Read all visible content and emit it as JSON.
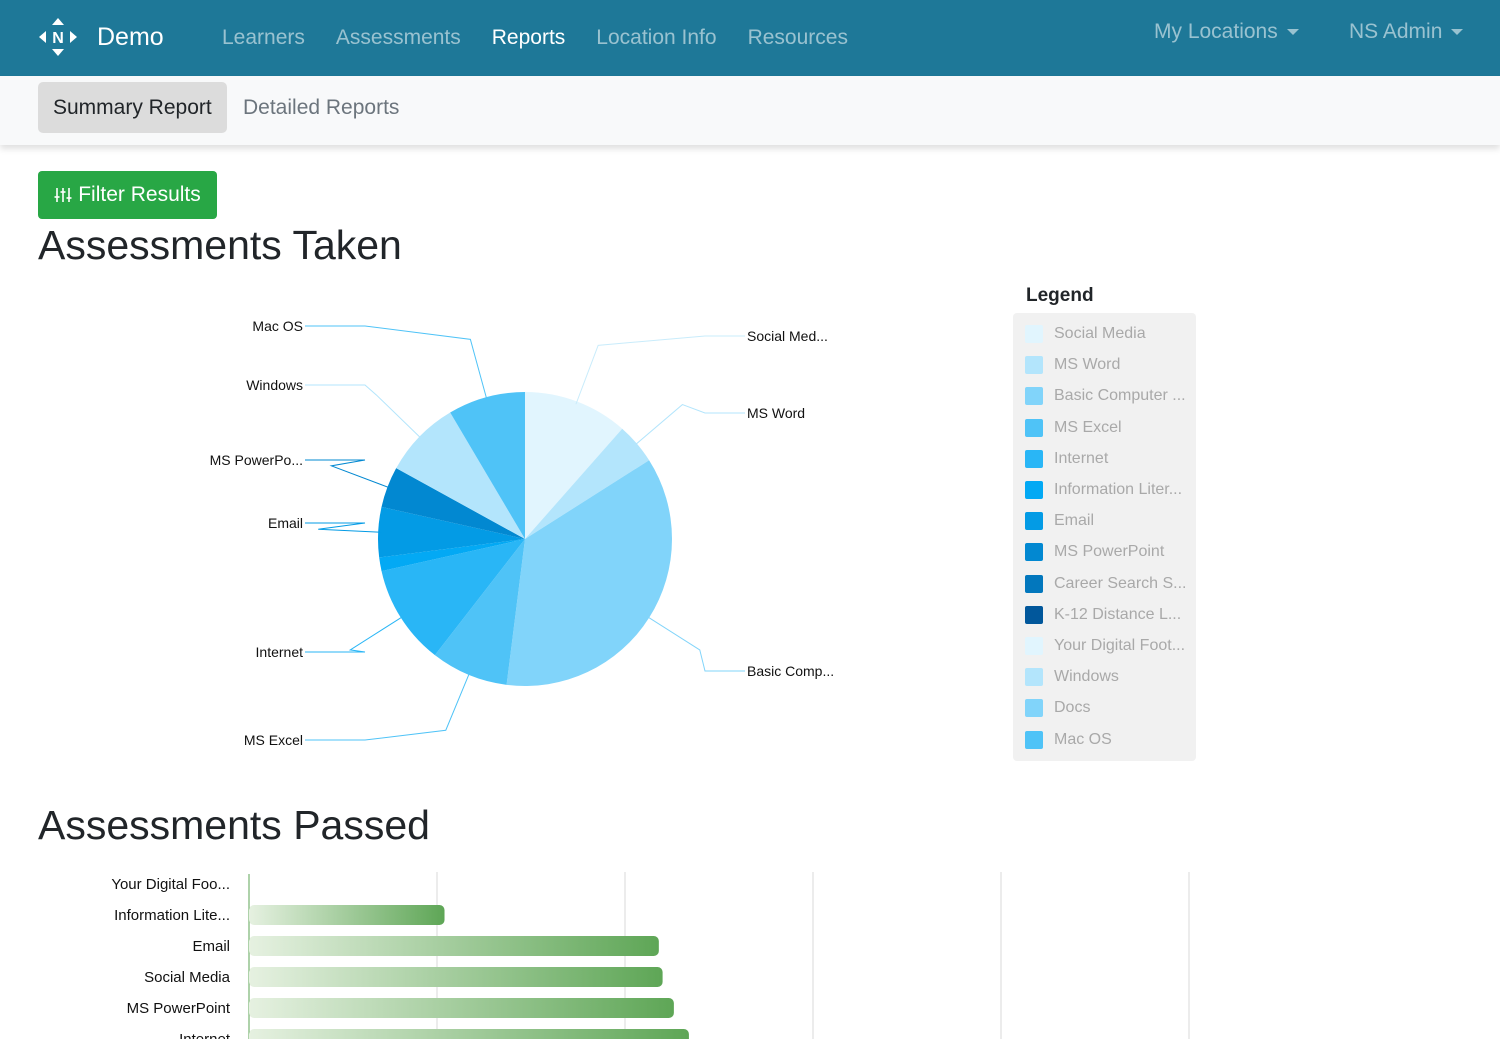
{
  "nav": {
    "brand": "Demo",
    "links": [
      "Learners",
      "Assessments",
      "Reports",
      "Location Info",
      "Resources"
    ],
    "active_link": "Reports",
    "my_locations": "My Locations",
    "user": "NS Admin"
  },
  "subnav": {
    "tabs": [
      "Summary Report",
      "Detailed Reports"
    ],
    "active_tab": "Summary Report"
  },
  "filter_button": {
    "label": "Filter Results",
    "icon": "sliders-icon"
  },
  "assessments_taken": {
    "title": "Assessments Taken",
    "legend_title": "Legend",
    "legend": [
      {
        "label": "Social Media",
        "color": "#e1f5fe"
      },
      {
        "label": "MS Word",
        "color": "#b3e5fc"
      },
      {
        "label": "Basic Computer ...",
        "color": "#81d4fa"
      },
      {
        "label": "MS Excel",
        "color": "#4fc3f7"
      },
      {
        "label": "Internet",
        "color": "#29b6f6"
      },
      {
        "label": "Information Liter...",
        "color": "#03a9f4"
      },
      {
        "label": "Email",
        "color": "#039be5"
      },
      {
        "label": "MS PowerPoint",
        "color": "#0288d1"
      },
      {
        "label": "Career Search S...",
        "color": "#0277bd"
      },
      {
        "label": "K-12 Distance L...",
        "color": "#01579b"
      },
      {
        "label": "Your Digital Foot...",
        "color": "#e1f5fe"
      },
      {
        "label": "Windows",
        "color": "#b3e5fc"
      },
      {
        "label": "Docs",
        "color": "#81d4fa"
      },
      {
        "label": "Mac OS",
        "color": "#4fc3f7"
      }
    ]
  },
  "chart_data": [
    {
      "type": "pie",
      "title": "Assessments Taken",
      "slices": [
        {
          "name": "Social Media",
          "value": 11.5,
          "color": "#e1f5fe",
          "label": "Social Med..."
        },
        {
          "name": "MS Word",
          "value": 4.5,
          "color": "#b3e5fc",
          "label": "MS Word"
        },
        {
          "name": "Basic Computer ...",
          "value": 36.0,
          "color": "#81d4fa",
          "label": "Basic Comp..."
        },
        {
          "name": "MS Excel",
          "value": 8.5,
          "color": "#4fc3f7",
          "label": "MS Excel"
        },
        {
          "name": "Internet",
          "value": 11.0,
          "color": "#29b6f6",
          "label": "Internet"
        },
        {
          "name": "Information Liter...",
          "value": 1.5,
          "color": "#03a9f4",
          "label": ""
        },
        {
          "name": "Email",
          "value": 5.5,
          "color": "#039be5",
          "label": "Email"
        },
        {
          "name": "MS PowerPoint",
          "value": 4.5,
          "color": "#0288d1",
          "label": "MS PowerPo..."
        },
        {
          "name": "Windows",
          "value": 8.5,
          "color": "#b3e5fc",
          "label": "Windows"
        },
        {
          "name": "Mac OS",
          "value": 8.5,
          "color": "#4fc3f7",
          "label": "Mac OS"
        }
      ]
    },
    {
      "type": "bar",
      "title": "Assessments Passed",
      "orientation": "horizontal",
      "categories": [
        "Your Digital Foo...",
        "Information Lite...",
        "Email",
        "Social Media",
        "MS PowerPoint",
        "Internet"
      ],
      "values": [
        0,
        10.4,
        21.8,
        22.0,
        22.6,
        23.4
      ],
      "xlim": [
        0,
        50
      ],
      "grid": true
    }
  ],
  "assessments_passed": {
    "title": "Assessments Passed"
  }
}
